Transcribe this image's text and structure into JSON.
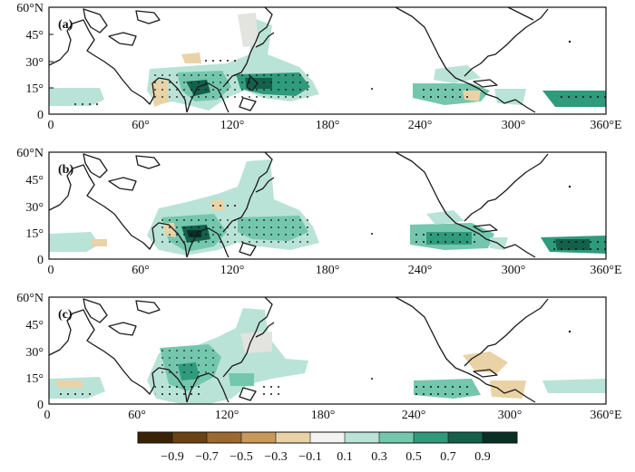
{
  "figure": {
    "palette": {
      "brown_dark": "#4a2d0b",
      "brown": "#b8874a",
      "tan": "#e7c994",
      "neutral": "#f1f1ef",
      "teal_light": "#b5e0d4",
      "teal": "#55b69a",
      "teal_dark": "#1d6e59",
      "near_black": "#0f2a22"
    },
    "panels": [
      {
        "id": "a",
        "label": "(a)",
        "lat_ticks": [
          "60°N",
          "45°",
          "30°",
          "15°",
          "0"
        ],
        "lon_ticks": [
          "0",
          "60°",
          "120°",
          "180°",
          "240°",
          "300°",
          "360°E"
        ]
      },
      {
        "id": "b",
        "label": "(b)",
        "lat_ticks": [
          "60°N",
          "45°",
          "30°",
          "15°",
          "0"
        ],
        "lon_ticks": [
          "0",
          "60°",
          "120°",
          "180°",
          "240°",
          "300°",
          "360°E"
        ]
      },
      {
        "id": "c",
        "label": "(c)",
        "lat_ticks": [
          "60°N",
          "45°",
          "30°",
          "15°",
          "0"
        ],
        "lon_ticks": [
          "0",
          "60°",
          "120°",
          "180°",
          "240°",
          "300°",
          "360°E"
        ]
      }
    ],
    "colorbar": {
      "ticks": [
        "−0.9",
        "−0.7",
        "−0.5",
        "−0.3",
        "−0.1",
        "0.1",
        "0.3",
        "0.5",
        "0.7",
        "0.9"
      ],
      "levels": [
        "#3a2206",
        "#6b4214",
        "#9c6a2e",
        "#c79a5c",
        "#e9d3a6",
        "#f3f3f1",
        "#b9e3d6",
        "#74c7ad",
        "#2f9a7c",
        "#14604b",
        "#0a2f24"
      ]
    }
  }
}
